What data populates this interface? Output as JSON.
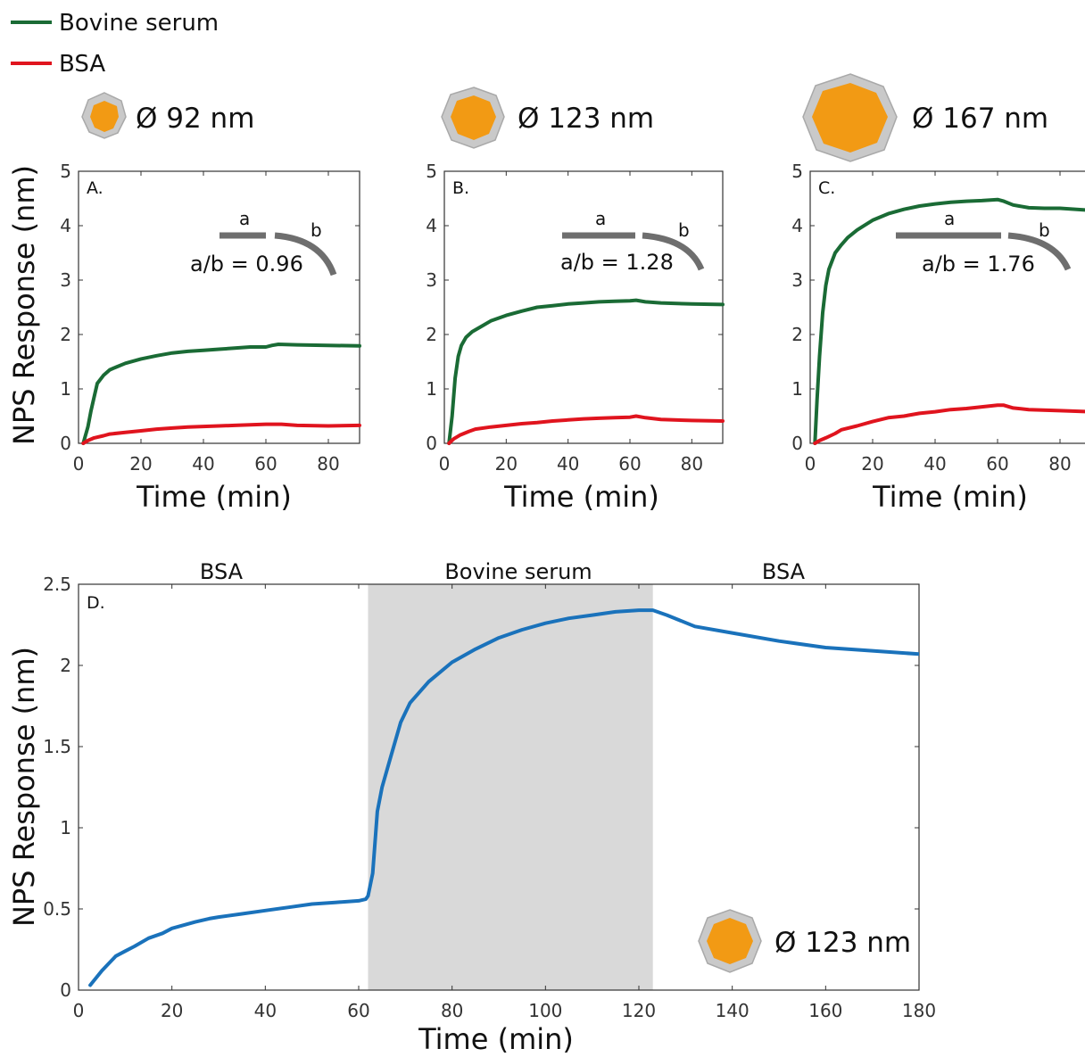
{
  "legend": {
    "items": [
      {
        "name": "Bovine serum",
        "color": "#1a6b35"
      },
      {
        "name": "BSA",
        "color": "#e0141e"
      }
    ]
  },
  "panels_top": [
    {
      "letter": "A.",
      "size_label": "Ø 92 nm",
      "ratio_label": "a/b = 0.96",
      "a_label": "a",
      "b_label": "b"
    },
    {
      "letter": "B.",
      "size_label": "Ø 123 nm",
      "ratio_label": "a/b = 1.28",
      "a_label": "a",
      "b_label": "b"
    },
    {
      "letter": "C.",
      "size_label": "Ø 167 nm",
      "ratio_label": "a/b = 1.76",
      "a_label": "a",
      "b_label": "b"
    }
  ],
  "panel_d": {
    "letter": "D.",
    "size_label": "Ø 123 nm",
    "region_labels": [
      "BSA",
      "Bovine serum",
      "BSA"
    ]
  },
  "colors": {
    "bovine_serum": "#1a6b35",
    "bsa": "#e0141e",
    "panel_d_line": "#1a72bb",
    "shade": "#d9d9d9",
    "axis": "#333333",
    "np_core": "#f29a14",
    "np_shell": "#c9c9c9"
  },
  "chart_data": [
    {
      "type": "line",
      "panel": "A.",
      "xlabel": "Time (min)",
      "ylabel": "NPS Response (nm)",
      "xlim": [
        0,
        90
      ],
      "ylim": [
        0,
        5
      ],
      "xticks": [
        0,
        20,
        40,
        60,
        80
      ],
      "yticks": [
        0,
        1,
        2,
        3,
        4,
        5
      ],
      "series": [
        {
          "name": "Bovine serum",
          "color": "#1a6b35",
          "x": [
            1.5,
            3,
            4,
            5,
            6,
            8,
            10,
            12,
            15,
            20,
            25,
            30,
            35,
            40,
            45,
            50,
            55,
            60,
            62,
            64,
            70,
            80,
            90
          ],
          "y": [
            0,
            0.3,
            0.6,
            0.85,
            1.1,
            1.25,
            1.35,
            1.4,
            1.47,
            1.55,
            1.61,
            1.66,
            1.69,
            1.71,
            1.73,
            1.75,
            1.77,
            1.77,
            1.8,
            1.82,
            1.81,
            1.8,
            1.79
          ]
        },
        {
          "name": "BSA",
          "color": "#e0141e",
          "x": [
            1.5,
            3,
            5,
            8,
            10,
            15,
            20,
            25,
            30,
            35,
            40,
            45,
            50,
            55,
            60,
            62,
            65,
            70,
            80,
            90
          ],
          "y": [
            0,
            0.05,
            0.1,
            0.14,
            0.17,
            0.2,
            0.23,
            0.26,
            0.28,
            0.3,
            0.31,
            0.32,
            0.33,
            0.34,
            0.35,
            0.35,
            0.35,
            0.33,
            0.32,
            0.33
          ]
        }
      ]
    },
    {
      "type": "line",
      "panel": "B.",
      "xlabel": "Time (min)",
      "ylabel": "",
      "xlim": [
        0,
        90
      ],
      "ylim": [
        0,
        5
      ],
      "xticks": [
        0,
        20,
        40,
        60,
        80
      ],
      "yticks": [
        0,
        1,
        2,
        3,
        4,
        5
      ],
      "series": [
        {
          "name": "Bovine serum",
          "color": "#1a6b35",
          "x": [
            1.5,
            2.5,
            3.5,
            4.5,
            5.5,
            7,
            9,
            12,
            15,
            20,
            25,
            30,
            35,
            40,
            45,
            50,
            55,
            60,
            62,
            65,
            70,
            80,
            90
          ],
          "y": [
            0,
            0.5,
            1.2,
            1.6,
            1.8,
            1.95,
            2.05,
            2.15,
            2.25,
            2.35,
            2.43,
            2.5,
            2.53,
            2.56,
            2.58,
            2.6,
            2.61,
            2.62,
            2.63,
            2.6,
            2.58,
            2.56,
            2.55
          ]
        },
        {
          "name": "BSA",
          "color": "#e0141e",
          "x": [
            1.5,
            3,
            5,
            8,
            10,
            15,
            20,
            25,
            30,
            35,
            40,
            45,
            50,
            55,
            60,
            62,
            65,
            70,
            80,
            90
          ],
          "y": [
            0,
            0.08,
            0.15,
            0.22,
            0.26,
            0.3,
            0.33,
            0.36,
            0.38,
            0.41,
            0.43,
            0.45,
            0.46,
            0.47,
            0.48,
            0.5,
            0.47,
            0.44,
            0.42,
            0.41
          ]
        }
      ]
    },
    {
      "type": "line",
      "panel": "C.",
      "xlabel": "Time (min)",
      "ylabel": "",
      "xlim": [
        0,
        90
      ],
      "ylim": [
        0,
        5
      ],
      "xticks": [
        0,
        20,
        40,
        60,
        80
      ],
      "yticks": [
        0,
        1,
        2,
        3,
        4,
        5
      ],
      "series": [
        {
          "name": "Bovine serum",
          "color": "#1a6b35",
          "x": [
            1.5,
            2.2,
            3,
            4,
            5,
            6,
            8,
            10,
            12,
            15,
            20,
            25,
            30,
            35,
            40,
            45,
            50,
            55,
            60,
            62,
            65,
            70,
            75,
            80,
            90
          ],
          "y": [
            0,
            0.8,
            1.6,
            2.4,
            2.9,
            3.2,
            3.5,
            3.65,
            3.78,
            3.92,
            4.1,
            4.22,
            4.3,
            4.36,
            4.4,
            4.43,
            4.45,
            4.46,
            4.48,
            4.45,
            4.38,
            4.33,
            4.32,
            4.32,
            4.28
          ]
        },
        {
          "name": "BSA",
          "color": "#e0141e",
          "x": [
            1.5,
            3,
            5,
            8,
            10,
            15,
            20,
            25,
            30,
            35,
            40,
            45,
            50,
            55,
            60,
            62,
            65,
            70,
            80,
            90
          ],
          "y": [
            0,
            0.05,
            0.1,
            0.18,
            0.25,
            0.32,
            0.4,
            0.47,
            0.5,
            0.55,
            0.58,
            0.62,
            0.64,
            0.67,
            0.7,
            0.7,
            0.65,
            0.62,
            0.6,
            0.58
          ]
        }
      ]
    },
    {
      "type": "line",
      "panel": "D.",
      "xlabel": "Time (min)",
      "ylabel": "NPS Response (nm)",
      "xlim": [
        0,
        180
      ],
      "ylim": [
        0,
        2.5
      ],
      "xticks": [
        0,
        20,
        40,
        60,
        80,
        100,
        120,
        140,
        160,
        180
      ],
      "yticks": [
        0,
        0.5,
        1,
        1.5,
        2,
        2.5
      ],
      "shaded_region": [
        62,
        123
      ],
      "series": [
        {
          "name": "",
          "color": "#1a72bb",
          "x": [
            2.5,
            5,
            8,
            10,
            12,
            15,
            18,
            20,
            25,
            28,
            30,
            35,
            40,
            45,
            50,
            55,
            60,
            61.5,
            62,
            63,
            64,
            65,
            67,
            69,
            71,
            75,
            80,
            85,
            90,
            95,
            100,
            105,
            110,
            115,
            120,
            123,
            126,
            132,
            140,
            150,
            160,
            170,
            180
          ],
          "y": [
            0.03,
            0.12,
            0.21,
            0.24,
            0.27,
            0.32,
            0.35,
            0.38,
            0.42,
            0.44,
            0.45,
            0.47,
            0.49,
            0.51,
            0.53,
            0.54,
            0.55,
            0.56,
            0.58,
            0.72,
            1.1,
            1.25,
            1.45,
            1.65,
            1.77,
            1.9,
            2.02,
            2.1,
            2.17,
            2.22,
            2.26,
            2.29,
            2.31,
            2.33,
            2.34,
            2.34,
            2.31,
            2.24,
            2.2,
            2.15,
            2.11,
            2.09,
            2.07
          ]
        }
      ]
    }
  ]
}
